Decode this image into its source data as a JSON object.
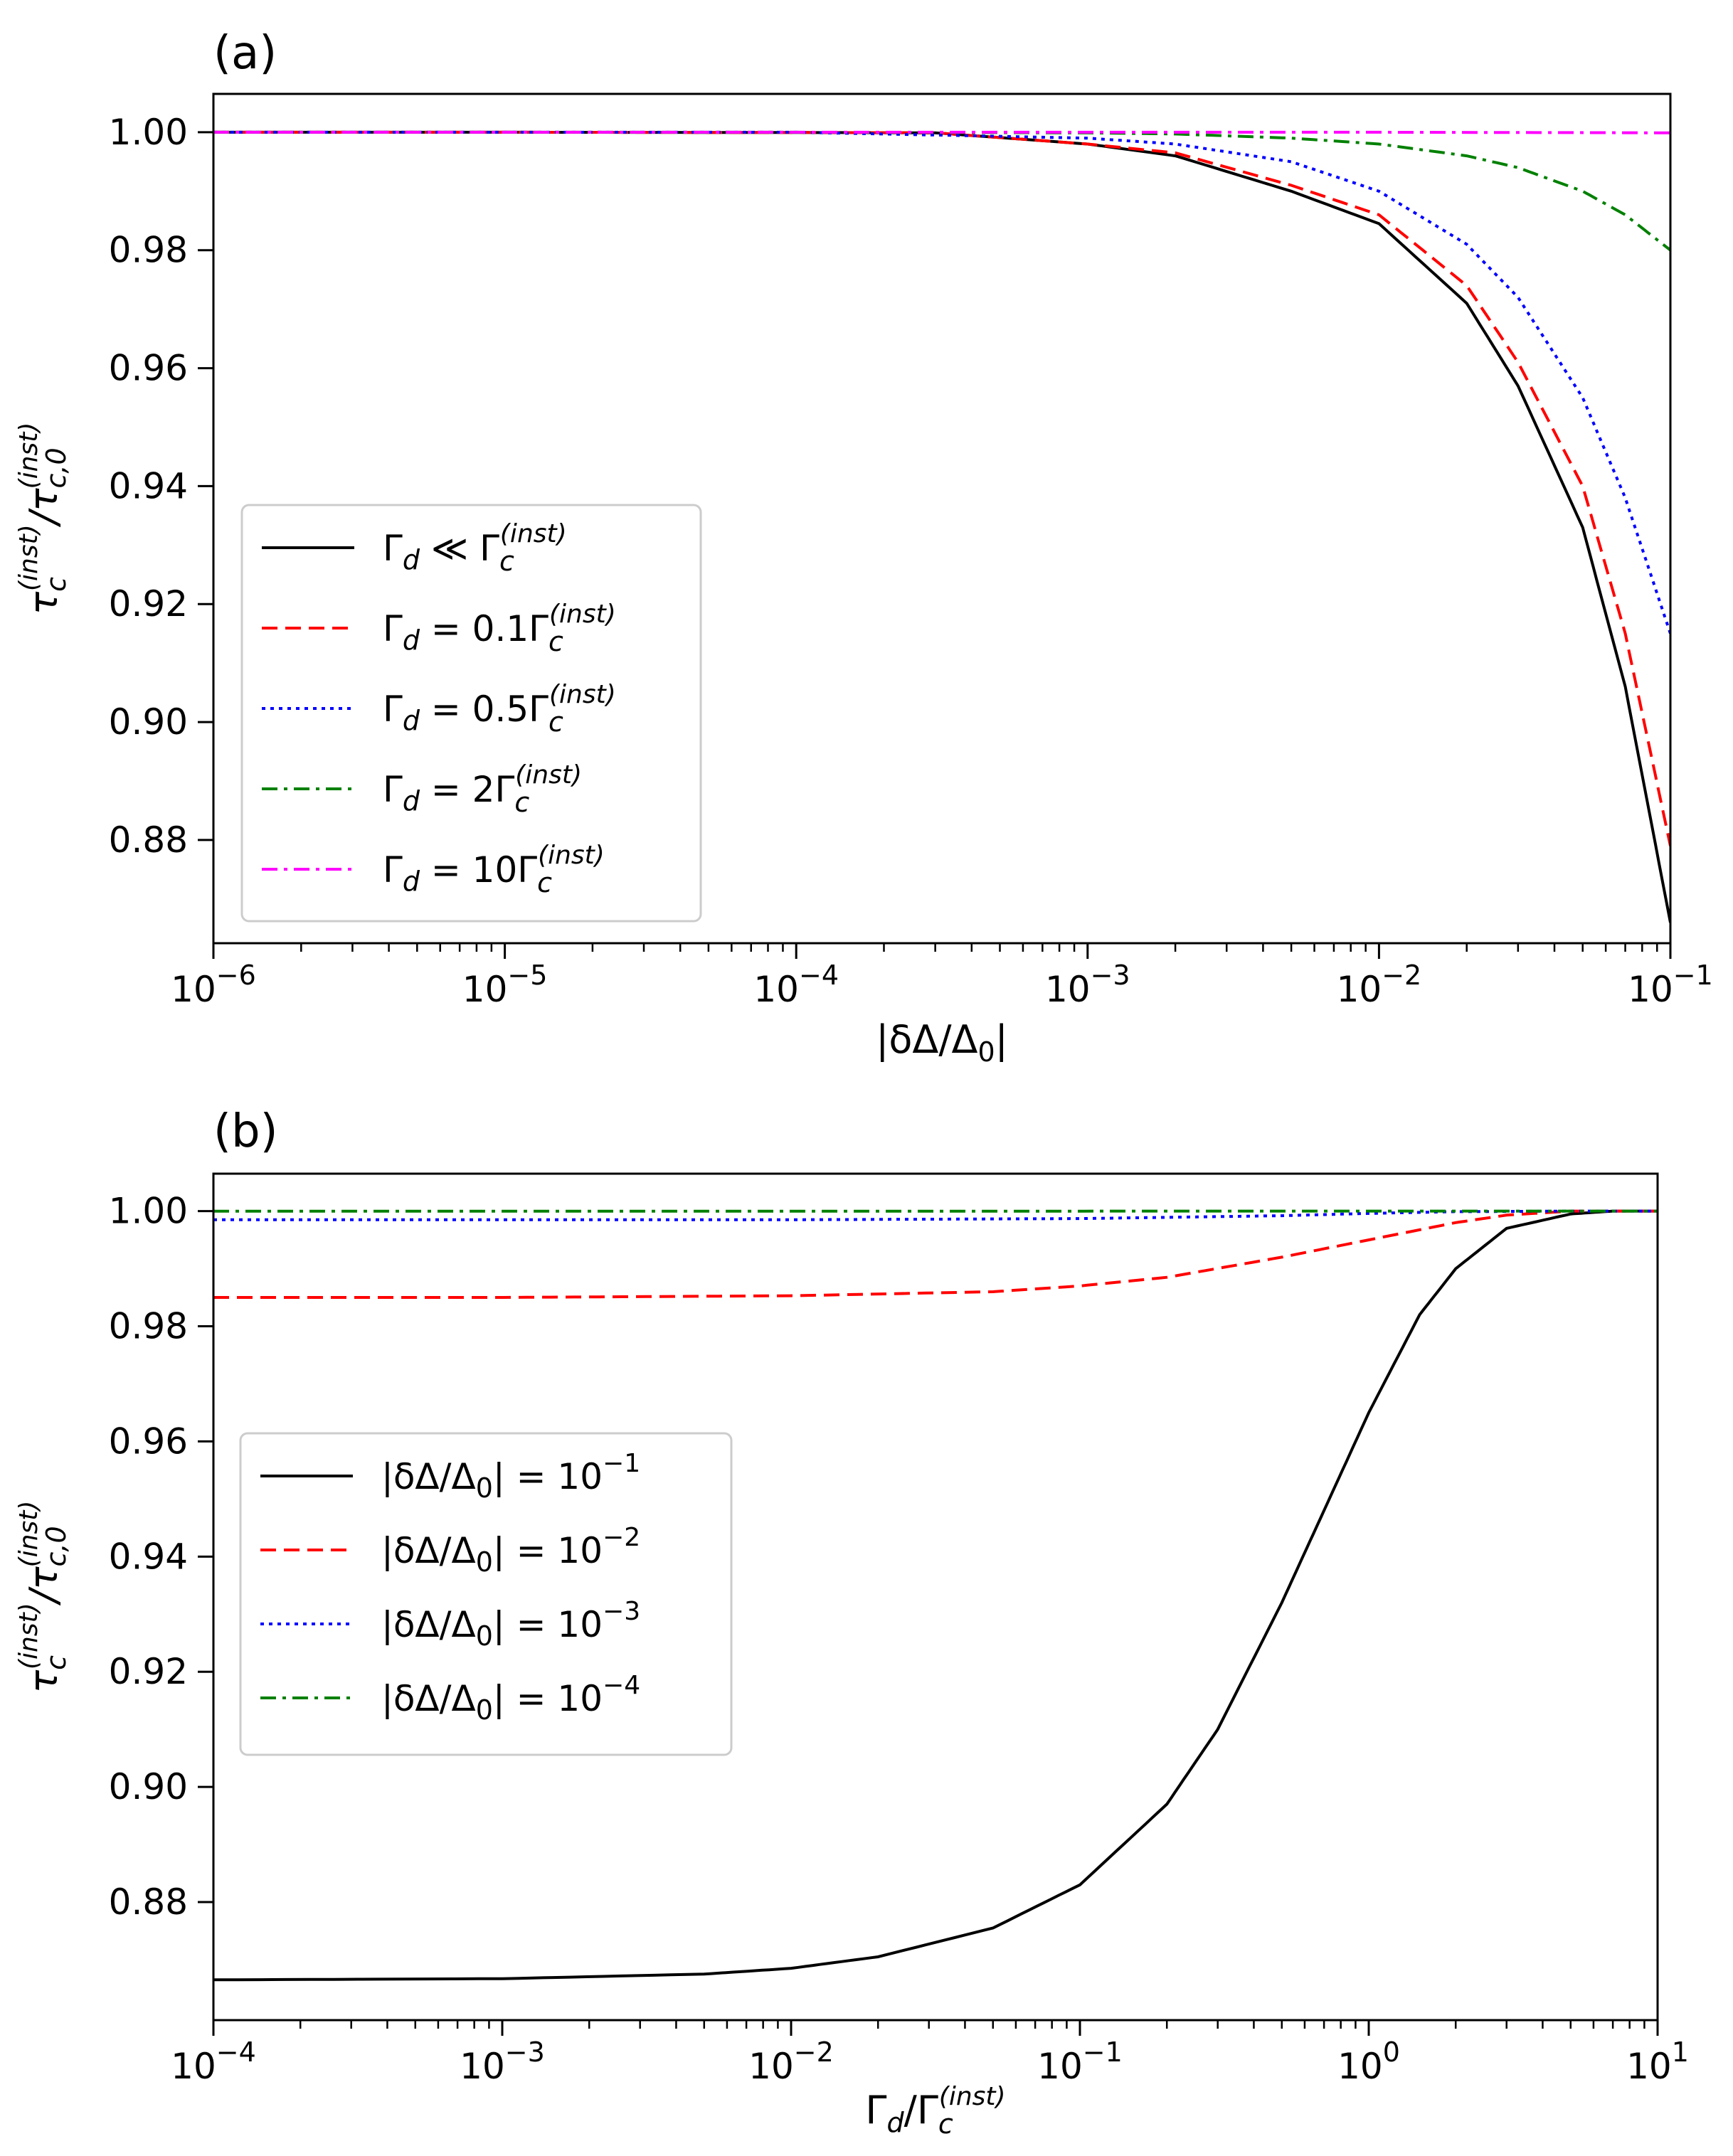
{
  "chart_data": [
    {
      "type": "line",
      "panel_label": "(a)",
      "xlabel": "|δΔ/Δ₀|",
      "ylabel": "τc(inst)/τc,0(inst)",
      "xscale": "log",
      "xlim": [
        1e-06,
        0.1
      ],
      "ylim": [
        0.8625,
        1.0065
      ],
      "x_ticks": [
        {
          "value": 1e-06,
          "base": "10",
          "exp": "−6"
        },
        {
          "value": 1e-05,
          "base": "10",
          "exp": "−5"
        },
        {
          "value": 0.0001,
          "base": "10",
          "exp": "−4"
        },
        {
          "value": 0.001,
          "base": "10",
          "exp": "−3"
        },
        {
          "value": 0.01,
          "base": "10",
          "exp": "−2"
        },
        {
          "value": 0.1,
          "base": "10",
          "exp": "−1"
        }
      ],
      "y_ticks": [
        {
          "value": 1.0,
          "label": "1.00"
        },
        {
          "value": 0.98,
          "label": "0.98"
        },
        {
          "value": 0.96,
          "label": "0.96"
        },
        {
          "value": 0.94,
          "label": "0.94"
        },
        {
          "value": 0.92,
          "label": "0.92"
        },
        {
          "value": 0.9,
          "label": "0.90"
        },
        {
          "value": 0.88,
          "label": "0.88"
        }
      ],
      "grid": false,
      "legend_position": "lower-left",
      "series": [
        {
          "name": "Γd ≪ Γc(inst)",
          "legend": {
            "main": "Γ",
            "sub": "d",
            "rel": " ≪ Γ",
            "sub2": "c",
            "sup": "(inst)"
          },
          "color": "#000000",
          "dash": "solid",
          "x": [
            1e-06,
            1e-05,
            0.0001,
            0.0003,
            0.001,
            0.002,
            0.005,
            0.01,
            0.02,
            0.03,
            0.05,
            0.07,
            0.1
          ],
          "y": [
            1.0,
            1.0,
            0.99995,
            0.9999,
            0.998,
            0.996,
            0.99,
            0.9845,
            0.971,
            0.957,
            0.933,
            0.906,
            0.866
          ]
        },
        {
          "name": "Γd = 0.1Γc(inst)",
          "legend": {
            "main": "Γ",
            "sub": "d",
            "rel": " = 0.1Γ",
            "sub2": "c",
            "sup": "(inst)"
          },
          "color": "#ff0000",
          "dash": "dashed",
          "x": [
            1e-06,
            1e-05,
            0.0001,
            0.0003,
            0.001,
            0.002,
            0.005,
            0.01,
            0.02,
            0.03,
            0.05,
            0.07,
            0.1
          ],
          "y": [
            1.0,
            1.0,
            0.99995,
            0.9999,
            0.998,
            0.9965,
            0.991,
            0.986,
            0.974,
            0.961,
            0.94,
            0.915,
            0.879
          ]
        },
        {
          "name": "Γd = 0.5Γc(inst)",
          "legend": {
            "main": "Γ",
            "sub": "d",
            "rel": " = 0.5Γ",
            "sub2": "c",
            "sup": "(inst)"
          },
          "color": "#0000ff",
          "dash": "dotted",
          "x": [
            1e-06,
            1e-05,
            0.0001,
            0.001,
            0.002,
            0.005,
            0.01,
            0.02,
            0.03,
            0.05,
            0.07,
            0.1
          ],
          "y": [
            1.0,
            1.0,
            1.0,
            0.999,
            0.998,
            0.995,
            0.99,
            0.981,
            0.972,
            0.955,
            0.938,
            0.915
          ]
        },
        {
          "name": "Γd = 2Γc(inst)",
          "legend": {
            "main": "Γ",
            "sub": "d",
            "rel": " = 2Γ",
            "sub2": "c",
            "sup": "(inst)"
          },
          "color": "#008000",
          "dash": "dashdot",
          "x": [
            1e-06,
            0.0001,
            0.001,
            0.002,
            0.005,
            0.01,
            0.02,
            0.03,
            0.05,
            0.07,
            0.1
          ],
          "y": [
            1.0,
            1.0,
            0.9999,
            0.9997,
            0.999,
            0.998,
            0.996,
            0.994,
            0.99,
            0.986,
            0.98
          ]
        },
        {
          "name": "Γd = 10Γc(inst)",
          "legend": {
            "main": "Γ",
            "sub": "d",
            "rel": " = 10Γ",
            "sub2": "c",
            "sup": "(inst)"
          },
          "color": "#ff00ff",
          "dash": "dashdot",
          "x": [
            1e-06,
            0.0001,
            0.01,
            0.1
          ],
          "y": [
            1.0,
            1.0,
            1.0,
            0.9999
          ]
        }
      ]
    },
    {
      "type": "line",
      "panel_label": "(b)",
      "xlabel": "Γd/Γc(inst)",
      "ylabel": "τc(inst)/τc,0(inst)",
      "xscale": "log",
      "xlim": [
        0.0001,
        10
      ],
      "ylim": [
        0.8595,
        1.0065
      ],
      "x_ticks": [
        {
          "value": 0.0001,
          "base": "10",
          "exp": "−4"
        },
        {
          "value": 0.001,
          "base": "10",
          "exp": "−3"
        },
        {
          "value": 0.01,
          "base": "10",
          "exp": "−2"
        },
        {
          "value": 0.1,
          "base": "10",
          "exp": "−1"
        },
        {
          "value": 1,
          "base": "10",
          "exp": "0"
        },
        {
          "value": 10,
          "base": "10",
          "exp": "1"
        }
      ],
      "y_ticks": [
        {
          "value": 1.0,
          "label": "1.00"
        },
        {
          "value": 0.98,
          "label": "0.98"
        },
        {
          "value": 0.96,
          "label": "0.96"
        },
        {
          "value": 0.94,
          "label": "0.94"
        },
        {
          "value": 0.92,
          "label": "0.92"
        },
        {
          "value": 0.9,
          "label": "0.90"
        },
        {
          "value": 0.88,
          "label": "0.88"
        }
      ],
      "grid": false,
      "legend_position": "center-left",
      "series": [
        {
          "name": "|δΔ/Δ₀| = 10⁻¹",
          "legend": {
            "text": "|δΔ/Δ",
            "sub": "0",
            "rest": "| = 10",
            "sup": "−1"
          },
          "color": "#000000",
          "dash": "solid",
          "x": [
            0.0001,
            0.001,
            0.005,
            0.01,
            0.02,
            0.05,
            0.1,
            0.2,
            0.3,
            0.5,
            0.7,
            1.0,
            1.5,
            2,
            3,
            5,
            7,
            10
          ],
          "y": [
            0.8665,
            0.8667,
            0.8675,
            0.8685,
            0.8705,
            0.8755,
            0.883,
            0.897,
            0.91,
            0.932,
            0.948,
            0.965,
            0.982,
            0.99,
            0.997,
            0.9995,
            1.0,
            1.0
          ]
        },
        {
          "name": "|δΔ/Δ₀| = 10⁻²",
          "legend": {
            "text": "|δΔ/Δ",
            "sub": "0",
            "rest": "| = 10",
            "sup": "−2"
          },
          "color": "#ff0000",
          "dash": "dashed",
          "x": [
            0.0001,
            0.001,
            0.01,
            0.05,
            0.1,
            0.2,
            0.5,
            1.0,
            2,
            3,
            5,
            10
          ],
          "y": [
            0.985,
            0.985,
            0.9853,
            0.986,
            0.987,
            0.9885,
            0.992,
            0.995,
            0.998,
            0.9993,
            1.0,
            1.0
          ]
        },
        {
          "name": "|δΔ/Δ₀| = 10⁻³",
          "legend": {
            "text": "|δΔ/Δ",
            "sub": "0",
            "rest": "| = 10",
            "sup": "−3"
          },
          "color": "#0000ff",
          "dash": "dotted",
          "x": [
            0.0001,
            0.01,
            0.1,
            0.5,
            1.0,
            2,
            5,
            10
          ],
          "y": [
            0.9985,
            0.9985,
            0.9987,
            0.9992,
            0.9996,
            0.9999,
            1.0,
            1.0
          ]
        },
        {
          "name": "|δΔ/Δ₀| = 10⁻⁴",
          "legend": {
            "text": "|δΔ/Δ",
            "sub": "0",
            "rest": "| = 10",
            "sup": "−4"
          },
          "color": "#008000",
          "dash": "dashdot",
          "x": [
            0.0001,
            1,
            10
          ],
          "y": [
            0.99998,
            1.0,
            1.0
          ]
        }
      ]
    }
  ]
}
